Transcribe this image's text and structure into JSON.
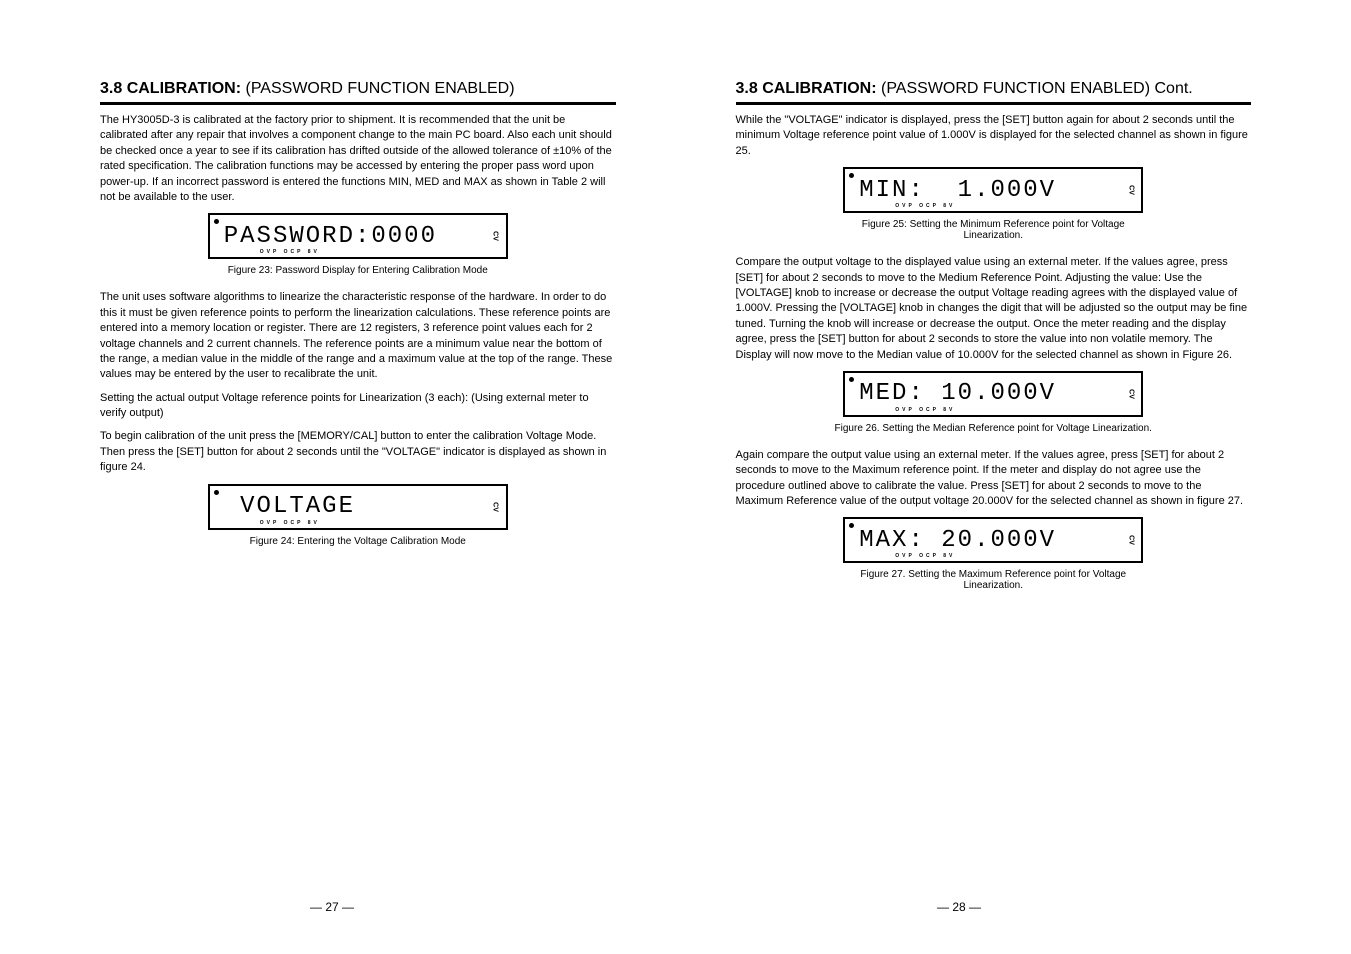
{
  "left": {
    "heading": "3.8 CALIBRATION:",
    "heading_sub": " (PASSWORD FUNCTION ENABLED)",
    "p1": "The HY3005D-3 is calibrated at the factory prior to shipment. It is recommended that the unit be calibrated after any repair that involves a component change to the main PC board. Also each unit should be checked once a year to see if its calibration has drifted outside of the allowed tolerance of ±10% of the rated specification. The calibration functions may be accessed by entering the proper pass word upon power-up. If an incorrect password is entered the functions MIN, MED and MAX as shown in Table 2 will not be available to the user.",
    "lcd_password": "PASSWORD:0000",
    "fig23_caption": "Figure 23: Password Display for Entering Calibration Mode",
    "p2": "The unit uses software algorithms to linearize the characteristic response of the hardware. In order to do this it must be given reference points to perform the linearization calculations. These reference points are entered into a memory location or register. There are 12 registers, 3 reference point values each for 2 voltage channels and 2 current channels. The reference points are a minimum value near the bottom of the range, a median value in the middle of the range and a maximum value at the top of the range. These values may be entered by the user to recalibrate the unit.",
    "p3": "Setting the actual output Voltage reference points for Linearization (3 each): (Using external meter to verify output)",
    "p4": "To begin calibration of the unit press the [MEMORY/CAL] button to enter the calibration Voltage Mode. Then press the [SET] button for about 2 seconds until the \"VOLTAGE\" indicator is displayed as shown in figure 24.",
    "lcd_voltage": " VOLTAGE",
    "fig24_caption": "Figure 24: Entering the Voltage Calibration Mode",
    "page_num": "— 27 —"
  },
  "right": {
    "heading": "3.8 CALIBRATION:",
    "heading_sub": " (PASSWORD FUNCTION ENABLED) Cont.",
    "p1": "While the \"VOLTAGE\" indicator is displayed, press the [SET] button again for about 2 seconds until the minimum Voltage reference point value of 1.000V is displayed for the selected channel as shown in figure 25.",
    "lcd_min": "MIN:  1.000V",
    "fig25_caption": "Figure 25: Setting the Minimum Reference point for Voltage Linearization.",
    "p2": "Compare the output voltage to the displayed value using an external meter. If the values agree, press [SET] for about 2 seconds to move to the Medium Reference Point. Adjusting the value: Use the [VOLTAGE] knob to increase or decrease the output Voltage reading agrees with the displayed value of 1.000V. Pressing the [VOLTAGE] knob in changes the digit that will be adjusted so the output may be fine tuned. Turning the knob will increase or decrease the output. Once the meter reading and the display agree, press the [SET] button for about 2 seconds to store the value into non volatile memory. The Display will now move to the Median value of 10.000V for the selected channel as shown in Figure 26.",
    "lcd_med": "MED: 10.000V",
    "fig26_caption": "Figure 26. Setting the Median Reference point for Voltage Linearization.",
    "p3": "Again compare the output value using an external meter. If the values agree, press [SET] for about 2 seconds to move to the Maximum reference point. If the meter and display do not agree use the procedure outlined above to calibrate the value. Press [SET] for about 2 seconds to move to the Maximum Reference value of the output voltage 20.000V for the selected channel as shown in figure 27.",
    "lcd_max": "MAX: 20.000V",
    "fig27_caption": "Figure 27. Setting the Maximum Reference point for Voltage Linearization.",
    "page_num": "— 28 —"
  },
  "lcd_markers": "OVP  OCP  8V",
  "lcd_side": "CV"
}
